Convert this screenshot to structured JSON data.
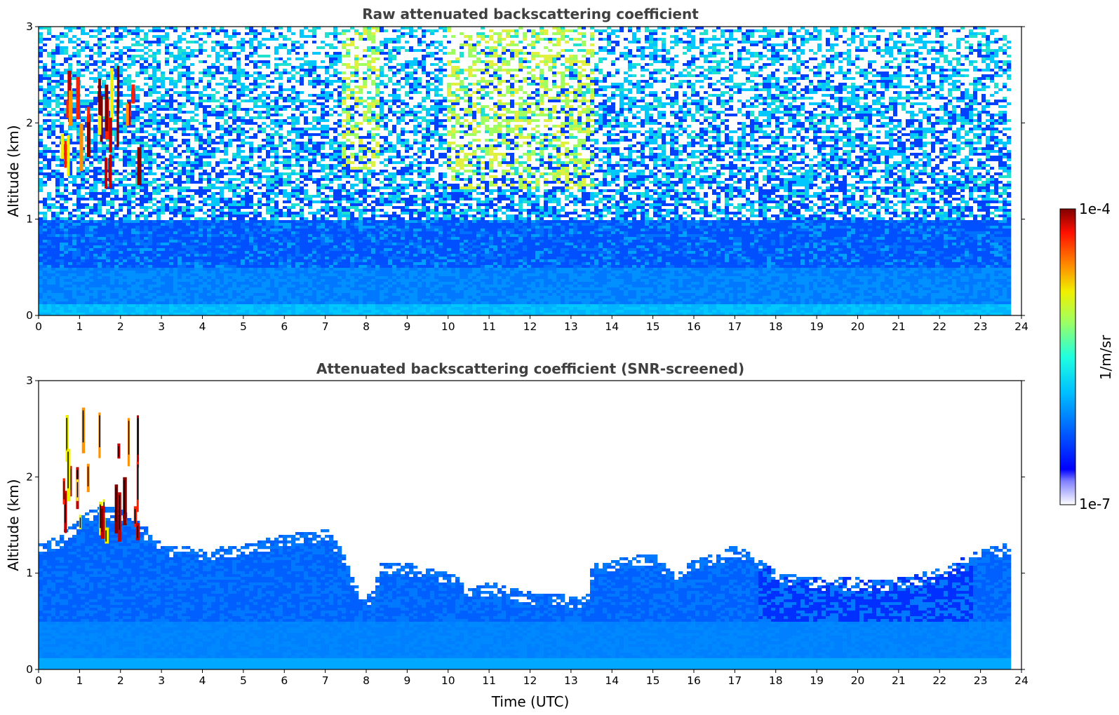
{
  "chart_data": [
    {
      "type": "heatmap",
      "title": "Raw attenuated backscattering coefficient",
      "xlabel": "",
      "ylabel": "Altitude (km)",
      "xlim": [
        0,
        24
      ],
      "ylim": [
        0,
        3
      ],
      "xticks": [
        0,
        1,
        2,
        3,
        4,
        5,
        6,
        7,
        8,
        9,
        10,
        11,
        12,
        13,
        14,
        15,
        16,
        17,
        18,
        19,
        20,
        21,
        22,
        23,
        24
      ],
      "yticks": [
        0,
        1,
        2,
        3
      ],
      "data_end_time": 23.8,
      "colorscale": "jet",
      "features": [
        {
          "name": "cloud",
          "time_range": [
            0.55,
            2.45
          ],
          "altitude_range": [
            1.3,
            2.5
          ],
          "level": "1e-4"
        },
        {
          "name": "noisy_high_signal",
          "time_range": [
            7.3,
            8.3
          ],
          "altitude_range": [
            1.5,
            3.0
          ],
          "level": "green"
        },
        {
          "name": "noisy_high_signal",
          "time_range": [
            9.9,
            13.5
          ],
          "altitude_range": [
            1.3,
            3.0
          ],
          "level": "green-yellow"
        }
      ]
    },
    {
      "type": "heatmap",
      "title": "Attenuated backscattering coefficient (SNR-screened)",
      "xlabel": "Time (UTC)",
      "ylabel": "Altitude (km)",
      "xlim": [
        0,
        24
      ],
      "ylim": [
        0,
        3
      ],
      "xticks": [
        0,
        1,
        2,
        3,
        4,
        5,
        6,
        7,
        8,
        9,
        10,
        11,
        12,
        13,
        14,
        15,
        16,
        17,
        18,
        19,
        20,
        21,
        22,
        23,
        24
      ],
      "yticks": [
        0,
        1,
        2,
        3
      ],
      "data_end_time": 23.8,
      "colorscale": "jet",
      "boundary_layer_top": {
        "time": [
          0,
          0.5,
          1,
          1.5,
          2,
          2.5,
          3,
          4,
          5,
          6,
          7,
          7.3,
          7.6,
          7.9,
          8.1,
          8.3,
          9,
          10,
          10.5,
          11,
          12,
          12.5,
          13,
          13.3,
          13.5,
          14,
          15,
          15.5,
          16,
          16.5,
          17,
          17.5,
          18,
          19,
          19.5,
          20,
          20.5,
          21,
          21.5,
          22,
          22.5,
          23,
          23.5,
          23.8
        ],
        "altitude": [
          1.3,
          1.4,
          1.6,
          1.7,
          1.65,
          1.5,
          1.3,
          1.25,
          1.3,
          1.4,
          1.45,
          1.3,
          1.0,
          0.75,
          0.8,
          1.1,
          1.1,
          1.0,
          0.85,
          0.9,
          0.8,
          0.8,
          0.75,
          0.75,
          1.1,
          1.15,
          1.2,
          1.0,
          1.15,
          1.2,
          1.3,
          1.15,
          1.0,
          0.95,
          0.95,
          0.95,
          0.93,
          0.95,
          1.0,
          1.05,
          1.15,
          1.25,
          1.3,
          1.3
        ]
      },
      "features": [
        {
          "name": "cloud",
          "time_range": [
            0.55,
            2.45
          ],
          "altitude_range": [
            1.3,
            2.5
          ],
          "level": "1e-4"
        }
      ]
    }
  ],
  "colorbar": {
    "label": "1/m/sr",
    "max_label": "1e-4",
    "min_label": "1e-7",
    "colors": [
      "#ffffff",
      "#e6e6ff",
      "#c8c8ff",
      "#a0a0ff",
      "#0000ff",
      "#0050ff",
      "#00a0ff",
      "#00e0ff",
      "#40ffc0",
      "#a0ff60",
      "#f0f000",
      "#ff9000",
      "#ff2000",
      "#c00000",
      "#800000"
    ]
  }
}
